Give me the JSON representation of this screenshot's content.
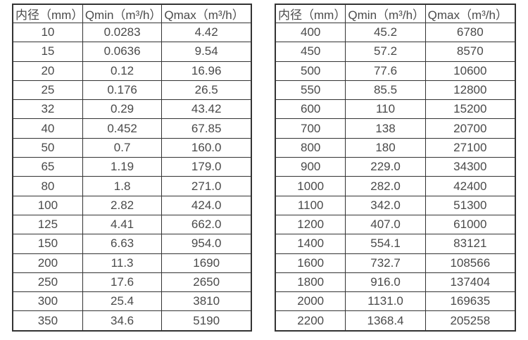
{
  "colors": {
    "background": "#ffffff",
    "border": "#333333",
    "text": "#4a4a4a"
  },
  "tables": [
    {
      "name": "flow-rate-table-small-diameters",
      "headers": [
        "内径（mm）",
        "Qmin（m³/h）",
        "Qmax（m³/h）"
      ],
      "rows": [
        [
          "10",
          "0.0283",
          "4.42"
        ],
        [
          "15",
          "0.0636",
          "9.54"
        ],
        [
          "20",
          "0.12",
          "16.96"
        ],
        [
          "25",
          "0.176",
          "26.5"
        ],
        [
          "32",
          "0.29",
          "43.42"
        ],
        [
          "40",
          "0.452",
          "67.85"
        ],
        [
          "50",
          "0.7",
          "160.0"
        ],
        [
          "65",
          "1.19",
          "179.0"
        ],
        [
          "80",
          "1.8",
          "271.0"
        ],
        [
          "100",
          "2.82",
          "424.0"
        ],
        [
          "125",
          "4.41",
          "662.0"
        ],
        [
          "150",
          "6.63",
          "954.0"
        ],
        [
          "200",
          "11.3",
          "1690"
        ],
        [
          "250",
          "17.6",
          "2650"
        ],
        [
          "300",
          "25.4",
          "3810"
        ],
        [
          "350",
          "34.6",
          "5190"
        ]
      ]
    },
    {
      "name": "flow-rate-table-large-diameters",
      "headers": [
        "内径（mm）",
        "Qmin（m³/h）",
        "Qmax（m³/h）"
      ],
      "rows": [
        [
          "400",
          "45.2",
          "6780"
        ],
        [
          "450",
          "57.2",
          "8570"
        ],
        [
          "500",
          "77.6",
          "10600"
        ],
        [
          "550",
          "85.5",
          "12800"
        ],
        [
          "600",
          "110",
          "15200"
        ],
        [
          "700",
          "138",
          "20700"
        ],
        [
          "800",
          "180",
          "27100"
        ],
        [
          "900",
          "229.0",
          "34300"
        ],
        [
          "1000",
          "282.0",
          "42400"
        ],
        [
          "1100",
          "342.0",
          "51300"
        ],
        [
          "1200",
          "407.0",
          "61000"
        ],
        [
          "1400",
          "554.1",
          "83121"
        ],
        [
          "1600",
          "732.7",
          "108566"
        ],
        [
          "1800",
          "916.0",
          "137404"
        ],
        [
          "2000",
          "1131.0",
          "169635"
        ],
        [
          "2200",
          "1368.4",
          "205258"
        ]
      ]
    }
  ]
}
